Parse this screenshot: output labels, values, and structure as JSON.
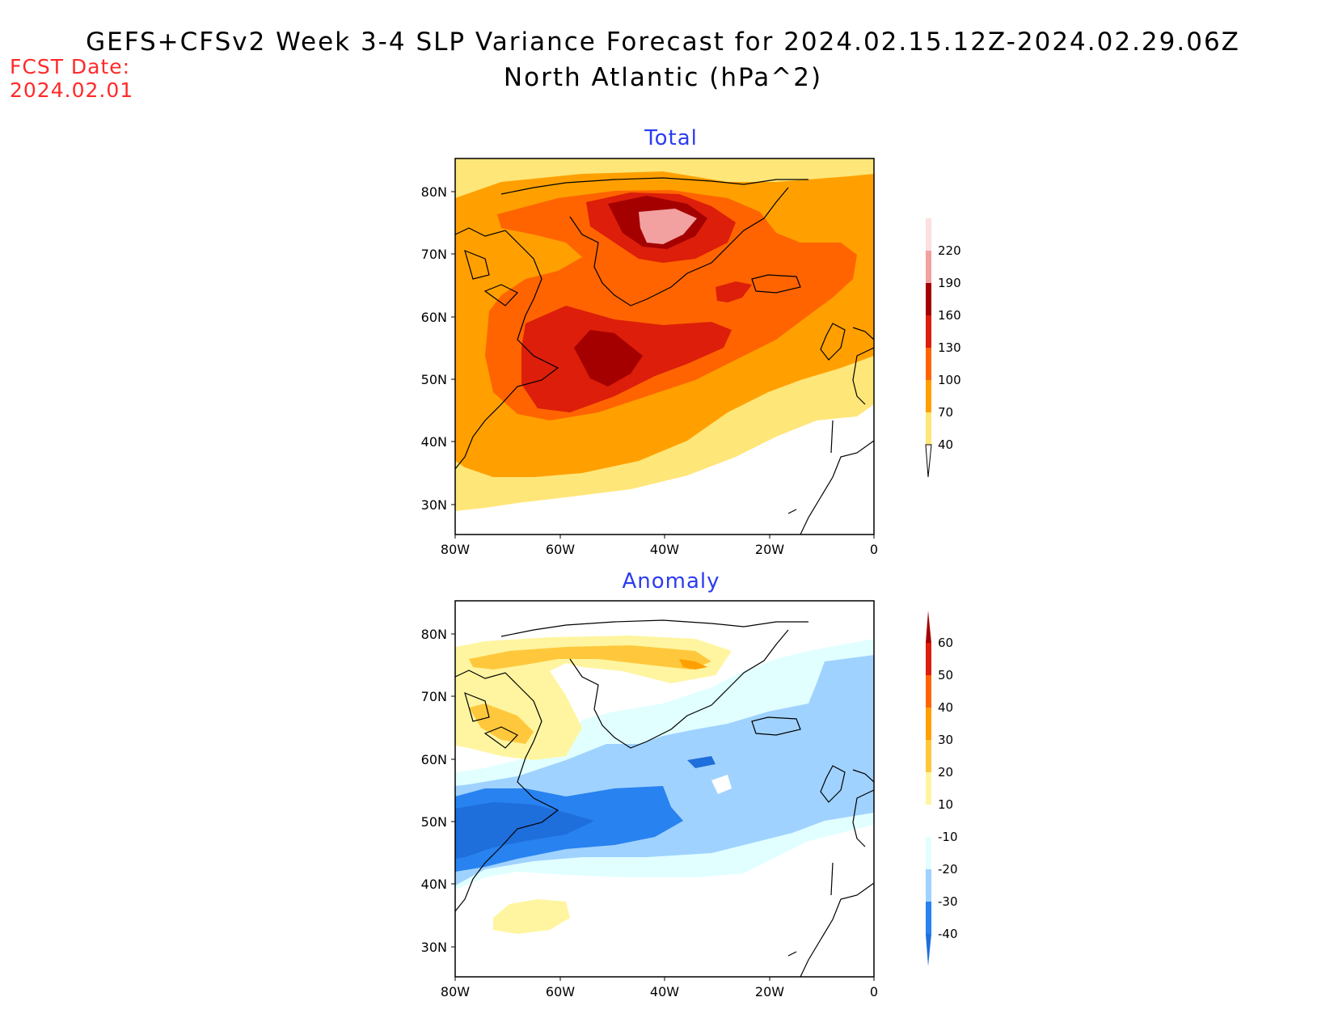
{
  "header": {
    "title_line_1": "GEFS+CFSv2 Week 3-4 SLP Variance Forecast for 2024.02.15.12Z-2024.02.29.06Z",
    "title_line_2": "North Atlantic (hPa^2)",
    "fcst_label": "FCST Date:",
    "fcst_date": "2024.02.01"
  },
  "axes": {
    "lat_ticks": [
      "80N",
      "70N",
      "60N",
      "50N",
      "40N",
      "30N"
    ],
    "lon_ticks": [
      "80W",
      "60W",
      "40W",
      "20W",
      "0"
    ]
  },
  "panels": [
    {
      "title": "Total",
      "colorbar": {
        "labels": [
          "220",
          "190",
          "160",
          "130",
          "100",
          "70",
          "40"
        ],
        "colors": [
          "#fde0e0",
          "#f2a0a0",
          "#a50000",
          "#dc1e0a",
          "#ff6400",
          "#ffa000",
          "#ffe678"
        ]
      }
    },
    {
      "title": "Anomaly",
      "colorbar": {
        "labels": [
          "60",
          "50",
          "40",
          "30",
          "20",
          "10",
          "-10",
          "-20",
          "-30",
          "-40"
        ],
        "colors": [
          "#a50000",
          "#dc1e0a",
          "#ff6400",
          "#ffa000",
          "#ffc83c",
          "#fff5a0",
          "#ffffff",
          "#e1ffff",
          "#a0d2ff",
          "#2882f0",
          "#1e6edc"
        ]
      }
    }
  ]
}
